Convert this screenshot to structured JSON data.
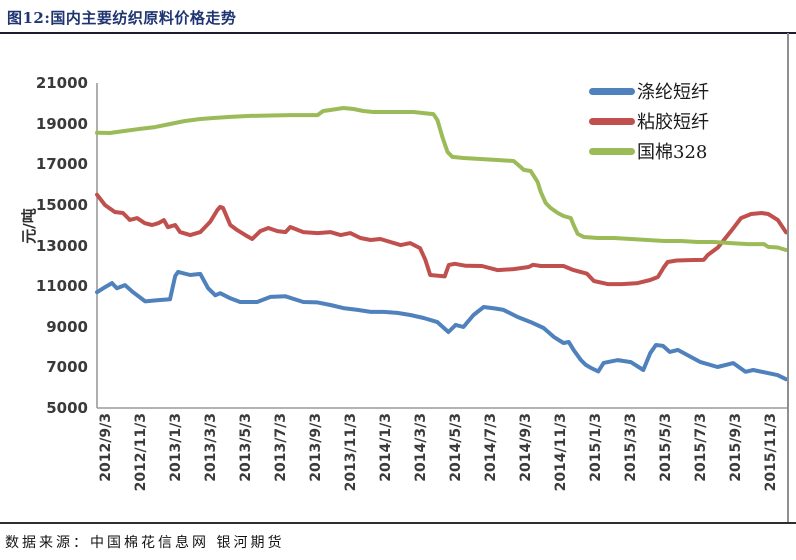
{
  "page": {
    "figure_title": "图12:国内主要纺织原料价格走势",
    "source_note": "数据来源：中国棉花信息网 银河期货"
  },
  "chart_data": {
    "type": "line",
    "title": "图12:国内主要纺织原料价格走势",
    "xlabel": "",
    "ylabel": "元/吨",
    "ylim": [
      5000,
      21000
    ],
    "y_ticks": [
      21000,
      19000,
      17000,
      15000,
      13000,
      11000,
      9000,
      7000,
      5000
    ],
    "x_tick_labels": [
      "2012/9/3",
      "2012/11/3",
      "2013/1/3",
      "2013/3/3",
      "2013/5/3",
      "2013/7/3",
      "2013/9/3",
      "2013/11/3",
      "2014/1/3",
      "2014/3/3",
      "2014/5/3",
      "2014/7/3",
      "2014/9/3",
      "2014/11/3",
      "2015/1/3",
      "2015/3/3",
      "2015/5/3",
      "2015/7/3",
      "2015/9/3",
      "2015/11/3"
    ],
    "x_unit": "weeks since 2012/9/3",
    "x_total_weeks": 170,
    "grid": false,
    "legend_position": "top-right",
    "series": [
      {
        "id": "polyester-staple",
        "name": "涤纶短纤",
        "color": "#4F81BD",
        "points": [
          [
            0,
            10700
          ],
          [
            2,
            10950
          ],
          [
            3.7,
            11150
          ],
          [
            4.9,
            10900
          ],
          [
            6.9,
            11050
          ],
          [
            8.9,
            10700
          ],
          [
            11.9,
            10250
          ],
          [
            14.8,
            10300
          ],
          [
            18,
            10350
          ],
          [
            19.3,
            11500
          ],
          [
            20,
            11700
          ],
          [
            23,
            11550
          ],
          [
            25.5,
            11600
          ],
          [
            27.4,
            10900
          ],
          [
            29.2,
            10550
          ],
          [
            30.4,
            10650
          ],
          [
            32.9,
            10400
          ],
          [
            35.3,
            10220
          ],
          [
            39.5,
            10220
          ],
          [
            42.8,
            10470
          ],
          [
            46.5,
            10500
          ],
          [
            50.9,
            10220
          ],
          [
            54.4,
            10200
          ],
          [
            57.6,
            10070
          ],
          [
            60.8,
            9920
          ],
          [
            64.3,
            9830
          ],
          [
            67.5,
            9730
          ],
          [
            70.7,
            9730
          ],
          [
            74.1,
            9680
          ],
          [
            77.3,
            9580
          ],
          [
            80.6,
            9430
          ],
          [
            84,
            9230
          ],
          [
            86.7,
            8740
          ],
          [
            88.5,
            9090
          ],
          [
            90.4,
            8990
          ],
          [
            92.9,
            9580
          ],
          [
            95.4,
            9970
          ],
          [
            98.3,
            9900
          ],
          [
            100.3,
            9830
          ],
          [
            103.8,
            9480
          ],
          [
            107,
            9230
          ],
          [
            110.2,
            8940
          ],
          [
            112.7,
            8500
          ],
          [
            115.1,
            8200
          ],
          [
            116.4,
            8250
          ],
          [
            117.6,
            7860
          ],
          [
            119.4,
            7360
          ],
          [
            120.6,
            7120
          ],
          [
            121.9,
            6970
          ],
          [
            123.7,
            6800
          ],
          [
            125,
            7220
          ],
          [
            128.5,
            7360
          ],
          [
            131.7,
            7260
          ],
          [
            134.8,
            6870
          ],
          [
            136.5,
            7700
          ],
          [
            137.9,
            8100
          ],
          [
            139.6,
            8060
          ],
          [
            141.3,
            7760
          ],
          [
            143.3,
            7860
          ],
          [
            148.9,
            7260
          ],
          [
            153.1,
            7020
          ],
          [
            157,
            7210
          ],
          [
            160,
            6780
          ],
          [
            161.9,
            6870
          ],
          [
            167.9,
            6620
          ],
          [
            170,
            6420
          ]
        ]
      },
      {
        "id": "viscose-staple",
        "name": "粘胶短纤",
        "color": "#C0504D",
        "points": [
          [
            0,
            15500
          ],
          [
            2,
            14990
          ],
          [
            4.4,
            14650
          ],
          [
            6.4,
            14600
          ],
          [
            8.1,
            14260
          ],
          [
            9.9,
            14350
          ],
          [
            11.8,
            14100
          ],
          [
            13.6,
            14010
          ],
          [
            15.1,
            14100
          ],
          [
            16.5,
            14250
          ],
          [
            17.5,
            13900
          ],
          [
            19.3,
            14010
          ],
          [
            20.5,
            13660
          ],
          [
            23,
            13510
          ],
          [
            25.5,
            13660
          ],
          [
            27.9,
            14160
          ],
          [
            29.7,
            14750
          ],
          [
            30.4,
            14900
          ],
          [
            31.1,
            14850
          ],
          [
            32.9,
            14010
          ],
          [
            34.6,
            13760
          ],
          [
            36.6,
            13510
          ],
          [
            38.3,
            13320
          ],
          [
            40.3,
            13710
          ],
          [
            42.3,
            13860
          ],
          [
            44.5,
            13710
          ],
          [
            46.5,
            13660
          ],
          [
            47.7,
            13910
          ],
          [
            50.9,
            13660
          ],
          [
            54.4,
            13610
          ],
          [
            57.6,
            13660
          ],
          [
            60.1,
            13510
          ],
          [
            62.5,
            13610
          ],
          [
            65,
            13370
          ],
          [
            67.5,
            13270
          ],
          [
            69.9,
            13320
          ],
          [
            72.4,
            13170
          ],
          [
            74.9,
            13020
          ],
          [
            77.3,
            13120
          ],
          [
            79.7,
            12870
          ],
          [
            81,
            12300
          ],
          [
            82.2,
            11550
          ],
          [
            85.8,
            11480
          ],
          [
            86.8,
            12040
          ],
          [
            88.3,
            12100
          ],
          [
            91,
            12000
          ],
          [
            95,
            11990
          ],
          [
            98.8,
            11790
          ],
          [
            102.8,
            11840
          ],
          [
            106.5,
            11940
          ],
          [
            107.6,
            12050
          ],
          [
            109.5,
            11990
          ],
          [
            115.1,
            11990
          ],
          [
            117.6,
            11790
          ],
          [
            120.9,
            11610
          ],
          [
            122.6,
            11250
          ],
          [
            126,
            11100
          ],
          [
            129.5,
            11100
          ],
          [
            133.4,
            11150
          ],
          [
            136.5,
            11300
          ],
          [
            138.4,
            11450
          ],
          [
            139.9,
            11940
          ],
          [
            140.8,
            12190
          ],
          [
            143,
            12260
          ],
          [
            146,
            12280
          ],
          [
            149.7,
            12290
          ],
          [
            150.7,
            12530
          ],
          [
            153.2,
            12900
          ],
          [
            156.4,
            13700
          ],
          [
            158.9,
            14350
          ],
          [
            161.4,
            14550
          ],
          [
            164,
            14600
          ],
          [
            165.6,
            14550
          ],
          [
            168,
            14250
          ],
          [
            170,
            13650
          ]
        ]
      },
      {
        "id": "cotton-328",
        "name": "国棉328",
        "color": "#9BBB59",
        "points": [
          [
            0,
            18550
          ],
          [
            3.2,
            18540
          ],
          [
            6.9,
            18640
          ],
          [
            10.6,
            18740
          ],
          [
            14.3,
            18830
          ],
          [
            18,
            18980
          ],
          [
            21.7,
            19130
          ],
          [
            25.5,
            19230
          ],
          [
            29.2,
            19280
          ],
          [
            32.9,
            19330
          ],
          [
            37.8,
            19380
          ],
          [
            42.8,
            19400
          ],
          [
            47.7,
            19420
          ],
          [
            54.4,
            19420
          ],
          [
            55.8,
            19620
          ],
          [
            57.6,
            19670
          ],
          [
            60.8,
            19770
          ],
          [
            63.3,
            19720
          ],
          [
            65.7,
            19620
          ],
          [
            68.2,
            19570
          ],
          [
            78.1,
            19570
          ],
          [
            80.6,
            19520
          ],
          [
            83,
            19470
          ],
          [
            84,
            19180
          ],
          [
            85.3,
            18290
          ],
          [
            86.5,
            17600
          ],
          [
            87.7,
            17360
          ],
          [
            90.4,
            17310
          ],
          [
            94.6,
            17260
          ],
          [
            98.8,
            17210
          ],
          [
            102.8,
            17160
          ],
          [
            104,
            16960
          ],
          [
            105.3,
            16720
          ],
          [
            107,
            16670
          ],
          [
            108.7,
            16130
          ],
          [
            109.5,
            15630
          ],
          [
            110.7,
            15090
          ],
          [
            111.9,
            14850
          ],
          [
            113.7,
            14600
          ],
          [
            115.1,
            14450
          ],
          [
            116.9,
            14350
          ],
          [
            117.6,
            14010
          ],
          [
            118.6,
            13570
          ],
          [
            120.1,
            13420
          ],
          [
            123.6,
            13370
          ],
          [
            127.5,
            13370
          ],
          [
            131.7,
            13320
          ],
          [
            135.9,
            13270
          ],
          [
            139.9,
            13220
          ],
          [
            144.1,
            13220
          ],
          [
            148.3,
            13170
          ],
          [
            152.2,
            13170
          ],
          [
            156.4,
            13120
          ],
          [
            160.6,
            13070
          ],
          [
            164.6,
            13070
          ],
          [
            165.6,
            12930
          ],
          [
            168,
            12900
          ],
          [
            170,
            12780
          ]
        ]
      }
    ]
  }
}
